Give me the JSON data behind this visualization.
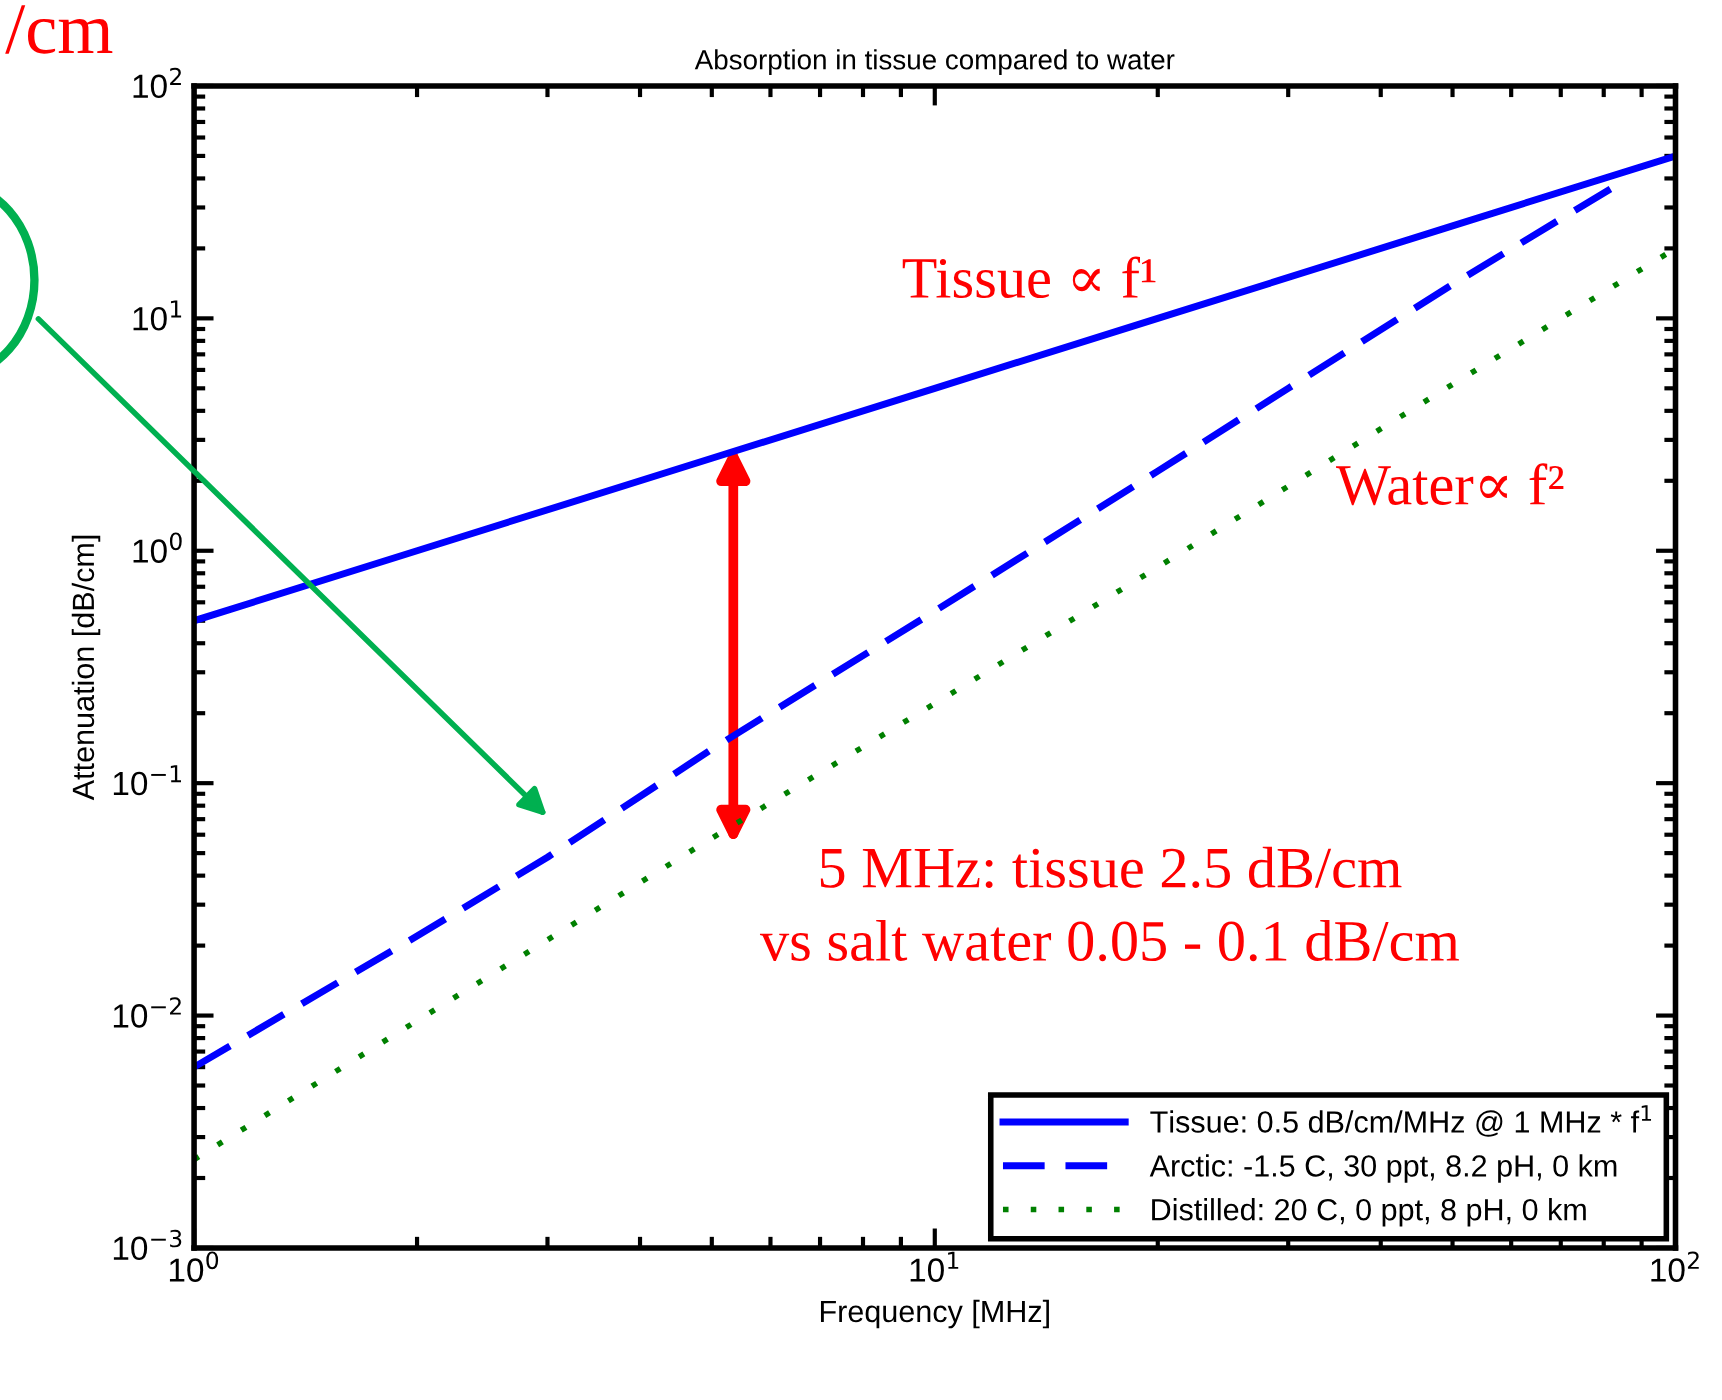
{
  "chart_data": {
    "type": "line",
    "title": "Absorption in tissue compared to water",
    "xlabel": "Frequency [MHz]",
    "ylabel": "Attenuation [dB/cm]",
    "log": "xy",
    "xlim": [
      1,
      100
    ],
    "ylim": [
      0.001,
      100
    ],
    "xticks": [
      {
        "value": 1,
        "label": "10$^{0}$"
      },
      {
        "value": 10,
        "label": "10$^{1}$"
      },
      {
        "value": 100,
        "label": "10$^{2}$"
      }
    ],
    "yticks": [
      {
        "value": 0.001,
        "label": "10$^{−3}$"
      },
      {
        "value": 0.01,
        "label": "10$^{−2}$"
      },
      {
        "value": 0.1,
        "label": "10$^{−1}$"
      },
      {
        "value": 1,
        "label": "10$^{0}$"
      },
      {
        "value": 10,
        "label": "10$^{1}$"
      },
      {
        "value": 100,
        "label": "10$^{2}$"
      }
    ],
    "grid": false,
    "legend": "bottom right",
    "series": [
      {
        "name": "Tissue: 0.5 dB/cm/MHz @ 1 MHz * f$^{1}$",
        "color": "#0000ff",
        "line_style": "solid",
        "x": [
          1,
          2,
          5,
          10,
          20,
          50,
          100
        ],
        "values": [
          0.5,
          1,
          2.5,
          5,
          10,
          25,
          50
        ]
      },
      {
        "name": "Arctic: -1.5 C, 30 ppt, 8.2 pH, 0 km",
        "color": "#0000ff",
        "line_style": "dashed",
        "x": [
          1,
          2,
          3,
          5,
          10,
          20,
          30,
          50,
          84
        ],
        "values": [
          0.006,
          0.022,
          0.048,
          0.14,
          0.55,
          2.2,
          5,
          14,
          38
        ]
      },
      {
        "name": "Distilled: 20 C, 0 ppt, 8 pH, 0 km",
        "color": "#008000",
        "line_style": "dotted",
        "x": [
          1,
          2,
          5,
          10,
          20,
          50,
          100
        ],
        "values": [
          0.0024,
          0.0095,
          0.058,
          0.22,
          0.85,
          5.2,
          20
        ]
      }
    ],
    "annotations": [
      "Tissue ∝ f¹",
      "Water∝ f²",
      "5 MHz: tissue 2.5 dB/cm\nvs salt water 0.05 - 0.1 dB/cm",
      "/cm"
    ]
  }
}
